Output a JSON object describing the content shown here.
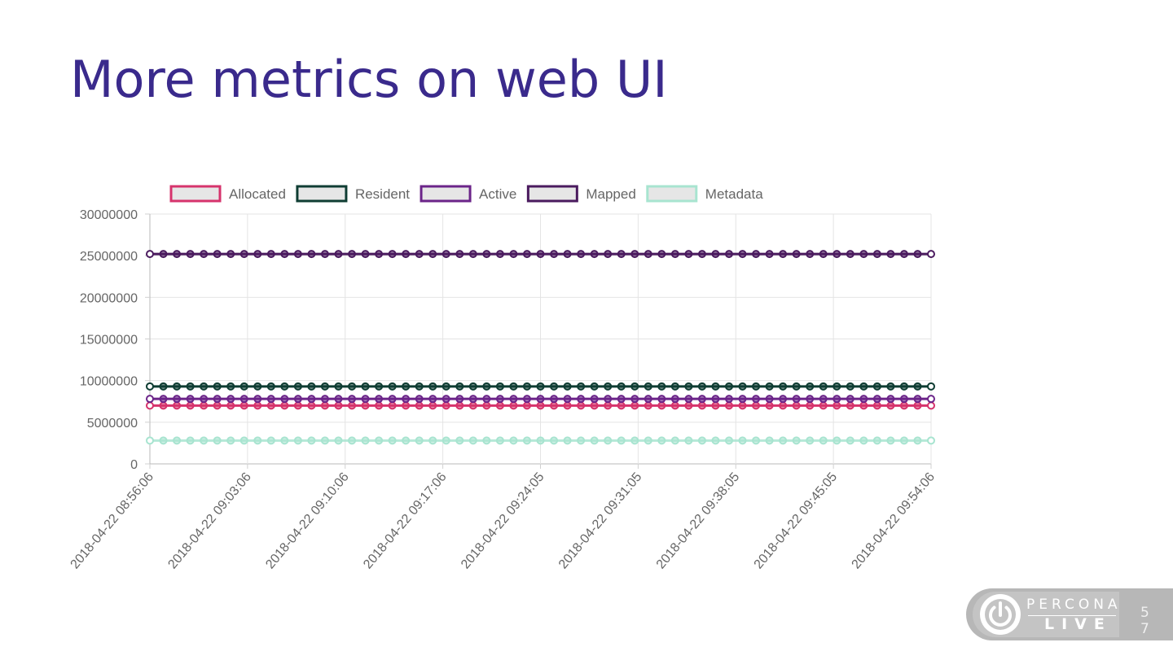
{
  "slide": {
    "title": "More metrics on web UI",
    "page_number": "57",
    "logo_text_top": "PERCONA",
    "logo_text_bottom": "LIVE"
  },
  "chart_data": {
    "type": "line",
    "title": "",
    "xlabel": "",
    "ylabel": "",
    "ylim": [
      0,
      30000000
    ],
    "y_ticks": [
      0,
      5000000,
      10000000,
      15000000,
      20000000,
      25000000,
      30000000
    ],
    "x_tick_labels": [
      "2018-04-22 08:56:06",
      "2018-04-22 09:03:06",
      "2018-04-22 09:10:06",
      "2018-04-22 09:17:06",
      "2018-04-22 09:24:05",
      "2018-04-22 09:31:05",
      "2018-04-22 09:38:05",
      "2018-04-22 09:45:05",
      "2018-04-22 09:54:06"
    ],
    "point_count": 59,
    "grid": true,
    "legend_position": "top",
    "series": [
      {
        "name": "Allocated",
        "color": "#d6336c",
        "value": 7000000
      },
      {
        "name": "Resident",
        "color": "#0f3d33",
        "value": 9300000
      },
      {
        "name": "Active",
        "color": "#6b2489",
        "value": 7800000
      },
      {
        "name": "Mapped",
        "color": "#4a1a5e",
        "value": 25200000
      },
      {
        "name": "Metadata",
        "color": "#a8e4d0",
        "value": 2800000
      }
    ]
  }
}
